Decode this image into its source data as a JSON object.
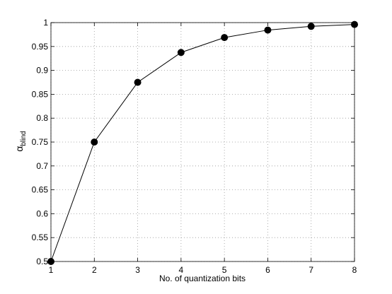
{
  "chart_data": {
    "type": "line",
    "x": [
      1,
      2,
      3,
      4,
      5,
      6,
      7,
      8
    ],
    "values": [
      0.5,
      0.75,
      0.875,
      0.9375,
      0.96875,
      0.984375,
      0.9921875,
      0.99609375
    ],
    "color": "#000000",
    "xlabel": "No. of quantization bits",
    "ylabel": "α",
    "ylabel_subscript": "blind",
    "xlim": [
      1,
      8
    ],
    "xticks": [
      1,
      2,
      3,
      4,
      5,
      6,
      7,
      8
    ],
    "ylim": [
      0.5,
      1
    ],
    "yticks": [
      0.5,
      0.55,
      0.6,
      0.65,
      0.7,
      0.75,
      0.8,
      0.85,
      0.9,
      0.95,
      1
    ],
    "grid": true,
    "markers": true
  }
}
